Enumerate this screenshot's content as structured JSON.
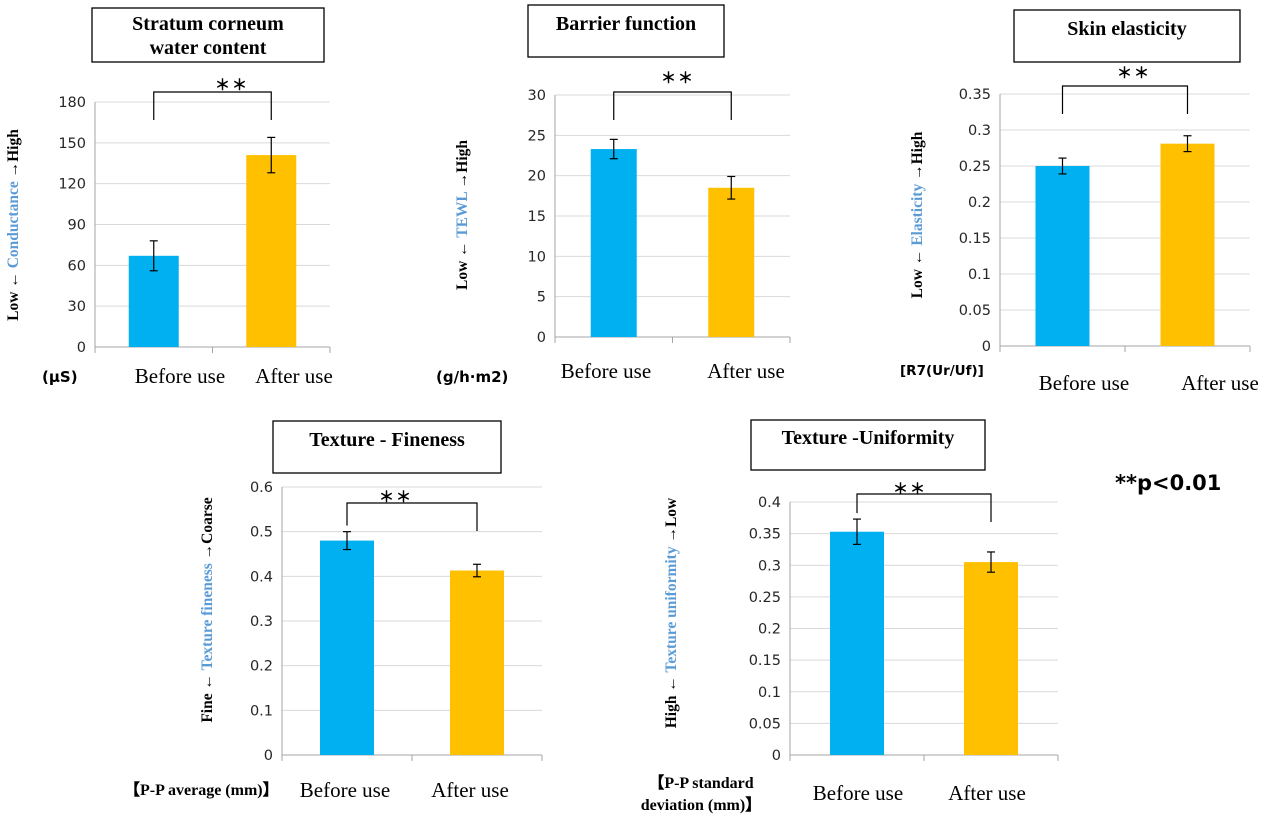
{
  "colors": {
    "before": "#00b0f0",
    "after": "#ffc000",
    "accent_blue": "#5b9bd5",
    "grid": "#d9d9d9",
    "axis": "#a6a6a6",
    "text": "#000000"
  },
  "significance_note": "**p<0.01",
  "chart_data": [
    {
      "type": "bar",
      "title": "Stratum corneum water content",
      "title_lines": [
        "Stratum corneum",
        "water content"
      ],
      "categories": [
        "Before use",
        "After use"
      ],
      "values": [
        67,
        141
      ],
      "errors": [
        11,
        13
      ],
      "ylim": [
        0,
        180
      ],
      "yticks": [
        "0",
        "30",
        "60",
        "90",
        "120",
        "150",
        "180"
      ],
      "ylabel": {
        "left": "Low",
        "middle": "Conductance",
        "right": "High"
      },
      "unit_lines": [
        "(μS)"
      ],
      "significance": "＊＊",
      "grid": true,
      "legend": "none"
    },
    {
      "type": "bar",
      "title": "Barrier function",
      "title_lines": [
        "Barrier function"
      ],
      "categories": [
        "Before use",
        "After use"
      ],
      "values": [
        23.3,
        18.5
      ],
      "errors": [
        1.2,
        1.4
      ],
      "ylim": [
        0,
        30
      ],
      "yticks": [
        "0",
        "5",
        "10",
        "15",
        "20",
        "25",
        "30"
      ],
      "ylabel": {
        "left": "Low",
        "middle": "TEWL",
        "right": "High"
      },
      "unit_lines": [
        "(g/h·m2)"
      ],
      "significance": "＊＊",
      "grid": true,
      "legend": "none"
    },
    {
      "type": "bar",
      "title": "Skin elasticity",
      "title_lines": [
        "Skin elasticity"
      ],
      "categories": [
        "Before use",
        "After use"
      ],
      "values": [
        0.25,
        0.281
      ],
      "errors": [
        0.011,
        0.011
      ],
      "ylim": [
        0,
        0.35
      ],
      "yticks": [
        "0",
        "0.05",
        "0.1",
        "0.15",
        "0.2",
        "0.25",
        "0.3",
        "0.35"
      ],
      "ylabel": {
        "left": "Low",
        "middle": "Elasticity",
        "right": "High"
      },
      "unit_lines": [
        "[R7(Ur/Uf)]"
      ],
      "significance": "＊＊",
      "grid": true,
      "legend": "none"
    },
    {
      "type": "bar",
      "title": "Texture - Fineness",
      "title_lines": [
        "Texture - Fineness"
      ],
      "categories": [
        "Before use",
        "After use"
      ],
      "values": [
        0.48,
        0.413
      ],
      "errors": [
        0.02,
        0.014
      ],
      "ylim": [
        0,
        0.6
      ],
      "yticks": [
        "0",
        "0.1",
        "0.2",
        "0.3",
        "0.4",
        "0.5",
        "0.6"
      ],
      "ylabel": {
        "left": "Fine",
        "middle": "Texture fineness",
        "right": "Coarse"
      },
      "unit_lines": [
        "【P-P average (mm)】"
      ],
      "significance": "＊＊",
      "grid": true,
      "legend": "none"
    },
    {
      "type": "bar",
      "title": "Texture -Uniformity",
      "title_lines": [
        "Texture -Uniformity"
      ],
      "categories": [
        "Before use",
        "After use"
      ],
      "values": [
        0.353,
        0.305
      ],
      "errors": [
        0.02,
        0.016
      ],
      "ylim": [
        0,
        0.4
      ],
      "yticks": [
        "0",
        "0.05",
        "0.1",
        "0.15",
        "0.2",
        "0.25",
        "0.3",
        "0.35",
        "0.4"
      ],
      "ylabel": {
        "left": "High",
        "middle": "Texture uniformity",
        "right": "Low"
      },
      "unit_lines": [
        "【P-P standard",
        "deviation (mm)】"
      ],
      "significance": "＊＊",
      "grid": true,
      "legend": "none"
    }
  ]
}
